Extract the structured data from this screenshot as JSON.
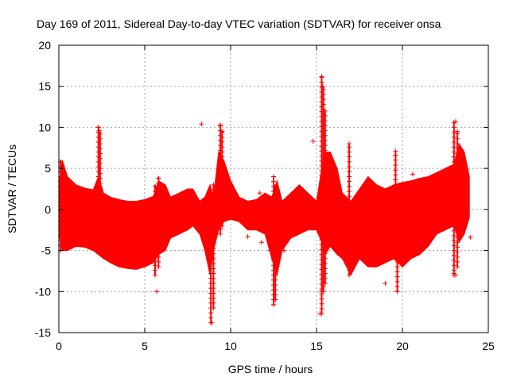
{
  "chart_data": {
    "type": "scatter",
    "title": "Day 169 of 2011, Sidereal Day-to-day VTEC variation (SDTVAR) for receiver onsa",
    "xlabel": "GPS time / hours",
    "ylabel": "SDTVAR / TECUs",
    "xlim": [
      0,
      25
    ],
    "ylim": [
      -15,
      20
    ],
    "x_ticks": [
      0,
      5,
      10,
      15,
      20,
      25
    ],
    "x_tick_labels": [
      "0",
      "5",
      "10",
      "15",
      "20",
      "25"
    ],
    "y_ticks": [
      -15,
      -10,
      -5,
      0,
      5,
      10,
      15,
      20
    ],
    "y_tick_labels": [
      "-15",
      "-10",
      "-5",
      "0",
      "5",
      "10",
      "15",
      "20"
    ],
    "grid": true,
    "marker": "+",
    "color": "#ff0000",
    "envelope": {
      "x": [
        0.0,
        0.2,
        0.5,
        1.0,
        1.5,
        2.0,
        2.3,
        2.6,
        3.0,
        3.5,
        4.0,
        4.5,
        5.0,
        5.5,
        5.8,
        6.2,
        6.5,
        7.0,
        7.5,
        7.8,
        8.2,
        8.5,
        8.8,
        9.0,
        9.3,
        9.6,
        10.0,
        10.5,
        11.0,
        11.5,
        12.0,
        12.4,
        12.7,
        13.0,
        13.5,
        14.0,
        14.5,
        15.0,
        15.3,
        15.5,
        15.8,
        16.2,
        16.5,
        17.0,
        17.5,
        18.0,
        18.5,
        19.0,
        19.5,
        20.0,
        20.5,
        21.0,
        21.5,
        22.0,
        22.5,
        23.0,
        23.3,
        23.6,
        23.9
      ],
      "upper": [
        3.0,
        6.0,
        4.0,
        3.0,
        2.6,
        2.4,
        4.0,
        2.0,
        1.5,
        1.2,
        1.0,
        1.0,
        1.2,
        1.6,
        3.5,
        3.0,
        1.5,
        2.0,
        2.5,
        2.5,
        1.0,
        1.5,
        3.0,
        1.5,
        7.0,
        6.0,
        3.5,
        1.5,
        1.0,
        1.2,
        2.0,
        1.5,
        3.5,
        1.0,
        2.0,
        3.0,
        2.0,
        1.0,
        5.0,
        7.0,
        7.0,
        5.0,
        2.0,
        1.0,
        2.5,
        4.0,
        3.0,
        2.5,
        3.0,
        3.3,
        3.5,
        3.8,
        4.0,
        4.5,
        5.0,
        5.5,
        8.0,
        7.0,
        4.0
      ],
      "lower": [
        -3.0,
        -5.0,
        -5.0,
        -4.5,
        -4.6,
        -5.0,
        -5.5,
        -6.0,
        -6.5,
        -7.0,
        -7.2,
        -7.3,
        -7.0,
        -6.5,
        -5.5,
        -5.0,
        -3.5,
        -3.0,
        -2.5,
        -2.0,
        -3.0,
        -5.0,
        -8.0,
        -5.0,
        -2.5,
        -1.5,
        -1.2,
        -1.5,
        -2.5,
        -2.5,
        -3.0,
        -6.0,
        -8.0,
        -5.0,
        -3.5,
        -3.0,
        -2.5,
        -2.5,
        -4.0,
        -5.5,
        -4.5,
        -5.5,
        -6.0,
        -8.0,
        -6.0,
        -7.0,
        -7.0,
        -6.5,
        -6.0,
        -7.0,
        -6.0,
        -5.5,
        -4.5,
        -3.0,
        -2.5,
        -2.0,
        -4.0,
        -3.0,
        -1.0
      ]
    },
    "outliers": [
      {
        "x": 2.3,
        "y": 10.0
      },
      {
        "x": 2.35,
        "y": 9.6
      },
      {
        "x": 5.7,
        "y": -10.0
      },
      {
        "x": 8.3,
        "y": 10.4
      },
      {
        "x": 8.9,
        "y": -13.8
      },
      {
        "x": 9.0,
        "y": -12.0
      },
      {
        "x": 9.4,
        "y": 10.3
      },
      {
        "x": 9.5,
        "y": 9.5
      },
      {
        "x": 11.0,
        "y": -3.3
      },
      {
        "x": 11.7,
        "y": 2.0
      },
      {
        "x": 11.8,
        "y": -4.0
      },
      {
        "x": 12.0,
        "y": 1.5
      },
      {
        "x": 12.3,
        "y": -5.0
      },
      {
        "x": 12.5,
        "y": -11.6
      },
      {
        "x": 12.6,
        "y": -11.0
      },
      {
        "x": 13.1,
        "y": -5.0
      },
      {
        "x": 14.8,
        "y": 8.3
      },
      {
        "x": 15.3,
        "y": 16.2
      },
      {
        "x": 15.35,
        "y": 15.0
      },
      {
        "x": 15.2,
        "y": -12.7
      },
      {
        "x": 15.3,
        "y": -10.0
      },
      {
        "x": 16.9,
        "y": 8.0
      },
      {
        "x": 19.0,
        "y": -9.0
      },
      {
        "x": 19.3,
        "y": -6.0
      },
      {
        "x": 19.6,
        "y": 7.1
      },
      {
        "x": 19.7,
        "y": -10.0
      },
      {
        "x": 20.6,
        "y": 4.3
      },
      {
        "x": 21.0,
        "y": -4.0
      },
      {
        "x": 23.1,
        "y": 10.7
      },
      {
        "x": 23.2,
        "y": 9.5
      },
      {
        "x": 23.0,
        "y": -7.8
      },
      {
        "x": 23.1,
        "y": -8.0
      },
      {
        "x": 23.95,
        "y": -3.4
      }
    ],
    "spikes": [
      {
        "x": 0.1,
        "ymin": -5.0,
        "ymax": 6.0
      },
      {
        "x": 2.3,
        "ymin": -5.0,
        "ymax": 10.0
      },
      {
        "x": 2.4,
        "ymin": -4.0,
        "ymax": 9.5
      },
      {
        "x": 5.6,
        "ymin": -8.0,
        "ymax": 3.0
      },
      {
        "x": 5.8,
        "ymin": -7.0,
        "ymax": 4.0
      },
      {
        "x": 8.85,
        "ymin": -13.8,
        "ymax": 2.0
      },
      {
        "x": 9.0,
        "ymin": -12.0,
        "ymax": 3.0
      },
      {
        "x": 9.4,
        "ymin": -3.0,
        "ymax": 10.3
      },
      {
        "x": 9.5,
        "ymin": -2.0,
        "ymax": 9.5
      },
      {
        "x": 12.5,
        "ymin": -11.6,
        "ymax": 4.0
      },
      {
        "x": 12.6,
        "ymin": -11.0,
        "ymax": 3.0
      },
      {
        "x": 15.3,
        "ymin": -12.7,
        "ymax": 16.2
      },
      {
        "x": 15.4,
        "ymin": -10.0,
        "ymax": 15.0
      },
      {
        "x": 15.5,
        "ymin": -9.0,
        "ymax": 12.0
      },
      {
        "x": 16.9,
        "ymin": -8.0,
        "ymax": 8.0
      },
      {
        "x": 19.6,
        "ymin": -3.0,
        "ymax": 7.1
      },
      {
        "x": 19.7,
        "ymin": -10.0,
        "ymax": 2.0
      },
      {
        "x": 23.0,
        "ymin": -8.0,
        "ymax": 10.7
      },
      {
        "x": 23.2,
        "ymin": -7.0,
        "ymax": 9.5
      }
    ]
  }
}
